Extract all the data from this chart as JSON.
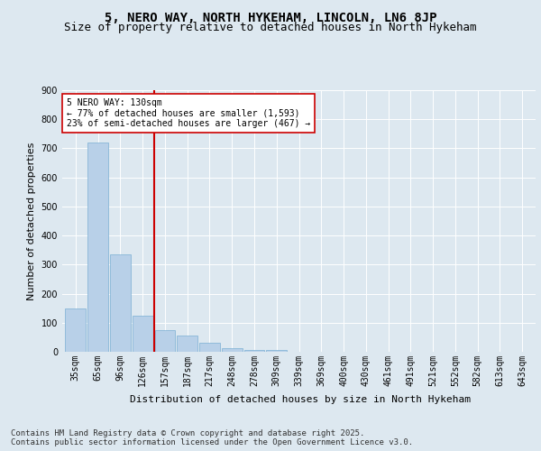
{
  "title": "5, NERO WAY, NORTH HYKEHAM, LINCOLN, LN6 8JP",
  "subtitle": "Size of property relative to detached houses in North Hykeham",
  "xlabel": "Distribution of detached houses by size in North Hykeham",
  "ylabel": "Number of detached properties",
  "footer": "Contains HM Land Registry data © Crown copyright and database right 2025.\nContains public sector information licensed under the Open Government Licence v3.0.",
  "categories": [
    "35sqm",
    "65sqm",
    "96sqm",
    "126sqm",
    "157sqm",
    "187sqm",
    "217sqm",
    "248sqm",
    "278sqm",
    "309sqm",
    "339sqm",
    "369sqm",
    "400sqm",
    "430sqm",
    "461sqm",
    "491sqm",
    "521sqm",
    "552sqm",
    "582sqm",
    "613sqm",
    "643sqm"
  ],
  "values": [
    148,
    720,
    335,
    125,
    75,
    55,
    30,
    12,
    5,
    5,
    0,
    0,
    0,
    0,
    0,
    0,
    0,
    0,
    0,
    0,
    0
  ],
  "bar_color": "#b8d0e8",
  "bar_edge_color": "#7aafd4",
  "vline_color": "#cc0000",
  "annotation_text": "5 NERO WAY: 130sqm\n← 77% of detached houses are smaller (1,593)\n23% of semi-detached houses are larger (467) →",
  "annotation_box_color": "#ffffff",
  "annotation_box_edge": "#cc0000",
  "bg_color": "#dde8f0",
  "plot_bg_color": "#dde8f0",
  "ylim": [
    0,
    900
  ],
  "yticks": [
    0,
    100,
    200,
    300,
    400,
    500,
    600,
    700,
    800,
    900
  ],
  "title_fontsize": 10,
  "subtitle_fontsize": 9,
  "axis_label_fontsize": 8,
  "tick_fontsize": 7,
  "footer_fontsize": 6.5,
  "vline_pos": 3.5
}
